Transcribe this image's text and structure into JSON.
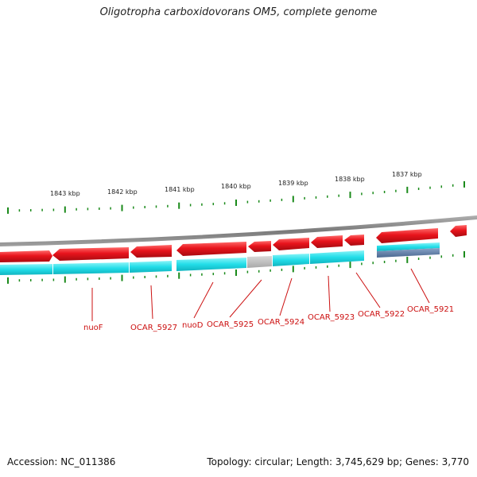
{
  "title": "Oligotropha carboxidovorans OM5, complete genome",
  "accession": "Accession: NC_011386",
  "topology": "Topology: circular; Length: 3,745,629 bp; Genes: 3,770",
  "kbp_ticks": [
    "1843 kbp",
    "1842 kbp",
    "1841 kbp",
    "1840 kbp",
    "1839 kbp",
    "1838 kbp",
    "1837 kbp"
  ],
  "genes": [
    "nuoF",
    "OCAR_5927",
    "nuoD",
    "OCAR_5925",
    "OCAR_5924",
    "OCAR_5923",
    "OCAR_5922",
    "OCAR_5921"
  ],
  "colors": {
    "cds": "#e8141c",
    "gene_track": "#22dde8",
    "other_track": "#b8b8b8",
    "backbone": "#808080",
    "ticks": "#1a8a1a",
    "labels": "#cc1010"
  }
}
